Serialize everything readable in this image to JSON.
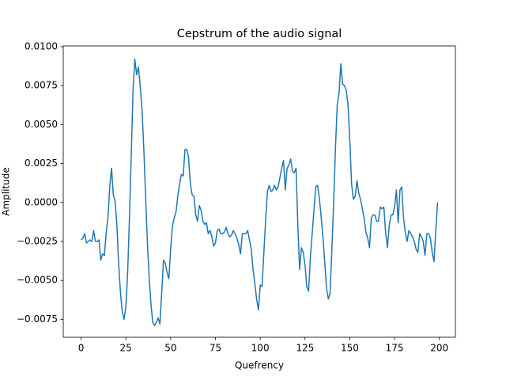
{
  "chart_data": {
    "type": "line",
    "title": "Cepstrum of the audio signal",
    "xlabel": "Quefrency",
    "ylabel": "Amplitude",
    "x": [
      0,
      1,
      2,
      3,
      4,
      5,
      6,
      7,
      8,
      9,
      10,
      11,
      12,
      13,
      14,
      15,
      16,
      17,
      18,
      19,
      20,
      21,
      22,
      23,
      24,
      25,
      26,
      27,
      28,
      29,
      30,
      31,
      32,
      33,
      34,
      35,
      36,
      37,
      38,
      39,
      40,
      41,
      42,
      43,
      44,
      45,
      46,
      47,
      48,
      49,
      50,
      51,
      52,
      53,
      54,
      55,
      56,
      57,
      58,
      59,
      60,
      61,
      62,
      63,
      64,
      65,
      66,
      67,
      68,
      69,
      70,
      71,
      72,
      73,
      74,
      75,
      76,
      77,
      78,
      79,
      80,
      81,
      82,
      83,
      84,
      85,
      86,
      87,
      88,
      89,
      90,
      91,
      92,
      93,
      94,
      95,
      96,
      97,
      98,
      99,
      100,
      101,
      102,
      103,
      104,
      105,
      106,
      107,
      108,
      109,
      110,
      111,
      112,
      113,
      114,
      115,
      116,
      117,
      118,
      119,
      120,
      121,
      122,
      123,
      124,
      125,
      126,
      127,
      128,
      129,
      130,
      131,
      132,
      133,
      134,
      135,
      136,
      137,
      138,
      139,
      140,
      141,
      142,
      143,
      144,
      145,
      146,
      147,
      148,
      149,
      150,
      151,
      152,
      153,
      154,
      155,
      156,
      157,
      158,
      159,
      160,
      161,
      162,
      163,
      164,
      165,
      166,
      167,
      168,
      169,
      170,
      171,
      172,
      173,
      174,
      175,
      176,
      177,
      178,
      179,
      180,
      181,
      182,
      183,
      184,
      185,
      186,
      187,
      188,
      189,
      190,
      191,
      192,
      193,
      194,
      195,
      196,
      197,
      198,
      199
    ],
    "series": [
      {
        "color": "#1f77b4",
        "values": [
          -0.0024,
          -0.0023,
          -0.002,
          -0.0026,
          -0.0025,
          -0.0024,
          -0.0025,
          -0.0018,
          -0.0025,
          -0.0025,
          -0.0024,
          -0.0037,
          -0.0033,
          -0.0034,
          -0.002,
          -0.001,
          0.001,
          0.0022,
          0.0005,
          0.0001,
          -0.0015,
          -0.004,
          -0.0058,
          -0.007,
          -0.0075,
          -0.0067,
          -0.0045,
          -0.001,
          0.003,
          0.0072,
          0.0092,
          0.0082,
          0.0087,
          0.0075,
          0.006,
          0.0035,
          0.0005,
          -0.0025,
          -0.0048,
          -0.0065,
          -0.0077,
          -0.0079,
          -0.0077,
          -0.0074,
          -0.0078,
          -0.0058,
          -0.0037,
          -0.0039,
          -0.0045,
          -0.0049,
          -0.003,
          -0.0015,
          -0.001,
          -0.0006,
          0.0004,
          0.0012,
          0.0018,
          0.0017,
          0.0034,
          0.0034,
          0.0029,
          0.0012,
          0.0005,
          0.0004,
          -0.0008,
          -0.0012,
          -0.0002,
          -0.0005,
          -0.0012,
          -0.0014,
          -0.0013,
          -0.002,
          -0.0018,
          -0.0022,
          -0.0028,
          -0.0026,
          -0.0018,
          -0.0017,
          -0.002,
          -0.002,
          -0.0019,
          -0.0016,
          -0.002,
          -0.0022,
          -0.0021,
          -0.0018,
          -0.002,
          -0.0023,
          -0.0027,
          -0.0033,
          -0.002,
          -0.002,
          -0.002,
          -0.0018,
          -0.0024,
          -0.003,
          -0.0043,
          -0.0052,
          -0.0062,
          -0.0069,
          -0.0053,
          -0.0054,
          -0.0033,
          -0.0012,
          0.0007,
          0.0011,
          0.0007,
          0.0008,
          0.0011,
          0.0008,
          0.001,
          0.0016,
          0.0022,
          0.0027,
          0.0008,
          0.0022,
          0.0024,
          0.0028,
          0.002,
          0.0019,
          0.0022,
          -0.0015,
          -0.0043,
          -0.0029,
          -0.0032,
          -0.004,
          -0.0054,
          -0.0057,
          -0.0035,
          -0.002,
          -0.0005,
          0.001,
          0.0011,
          0.0003,
          -0.0009,
          -0.0022,
          -0.0038,
          -0.0055,
          -0.0062,
          -0.0058,
          -0.003,
          0.0,
          0.0035,
          0.0063,
          0.007,
          0.0089,
          0.0076,
          0.0075,
          0.0072,
          0.0063,
          0.004,
          0.0012,
          0.0002,
          0.0004,
          0.0014,
          0.0006,
          0.0002,
          -0.0004,
          -0.001,
          -0.0019,
          -0.0023,
          -0.0029,
          -0.001,
          -0.0008,
          -0.0008,
          -0.0012,
          -0.0012,
          -0.0003,
          -0.0004,
          -0.0003,
          -0.0019,
          -0.0029,
          -0.0015,
          -0.0008,
          -0.0008,
          -0.0003,
          0.0008,
          -0.0013,
          0.0008,
          0.001,
          -0.001,
          -0.0019,
          -0.0025,
          -0.0018,
          -0.002,
          -0.0022,
          -0.0025,
          -0.003,
          -0.0032,
          -0.002,
          -0.0022,
          -0.0025,
          -0.0034,
          -0.002,
          -0.002,
          -0.0023,
          -0.0032,
          -0.0038,
          -0.0018,
          0.0
        ]
      }
    ],
    "xlim": [
      -9.95,
      208.95
    ],
    "ylim": [
      -0.00865,
      0.01005
    ],
    "xticks": [
      0,
      25,
      50,
      75,
      100,
      125,
      150,
      175,
      200
    ],
    "yticks": [
      {
        "value": -0.0075,
        "label": "−0.0075"
      },
      {
        "value": -0.005,
        "label": "−0.0050"
      },
      {
        "value": -0.0025,
        "label": "−0.0025"
      },
      {
        "value": 0,
        "label": "0.0000"
      },
      {
        "value": 0.0025,
        "label": "0.0025"
      },
      {
        "value": 0.005,
        "label": "0.0050"
      },
      {
        "value": 0.0075,
        "label": "0.0075"
      },
      {
        "value": 0.01,
        "label": "0.0100"
      }
    ],
    "grid": false
  }
}
